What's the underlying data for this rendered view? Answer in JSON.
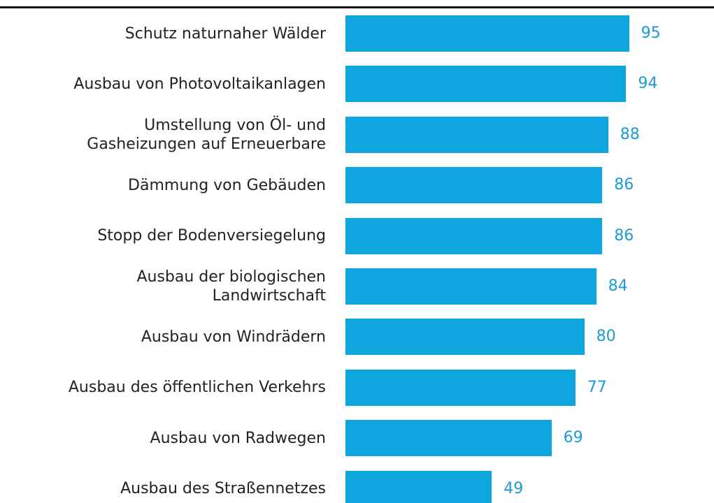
{
  "chart_data": {
    "type": "bar",
    "orientation": "horizontal",
    "categories": [
      "Schutz naturnaher Wälder",
      "Ausbau von Photovoltaikanlagen",
      "Umstellung von Öl- und\nGasheizungen auf Erneuerbare",
      "Dämmung von Gebäuden",
      "Stopp der Bodenversiegelung",
      "Ausbau der biologischen\nLandwirtschaft",
      "Ausbau von Windrädern",
      "Ausbau des öffentlichen Verkehrs",
      "Ausbau von Radwegen",
      "Ausbau des Straßennetzes"
    ],
    "values": [
      95,
      94,
      88,
      86,
      86,
      84,
      80,
      77,
      69,
      49
    ],
    "color": "#0fa5df",
    "label_color": "#1a9ad6",
    "xlim": [
      0,
      100
    ]
  }
}
